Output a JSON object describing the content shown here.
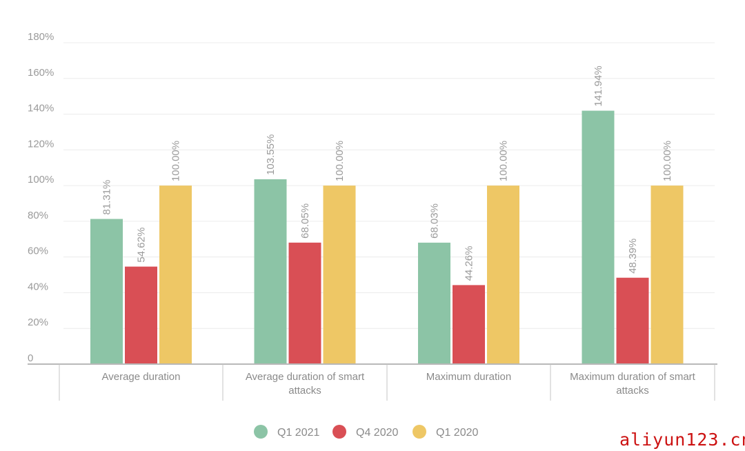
{
  "chart_data": {
    "type": "bar",
    "categories": [
      [
        "Average duration"
      ],
      [
        "Average duration of smart",
        "attacks"
      ],
      [
        "Maximum duration"
      ],
      [
        "Maximum duration of smart",
        "attacks"
      ]
    ],
    "series": [
      {
        "name": "Q1 2021",
        "color": "#8cc4a6",
        "values": [
          81.31,
          103.55,
          68.03,
          141.94
        ],
        "labels": [
          "81.31%",
          "103.55%",
          "68.03%",
          "141.94%"
        ]
      },
      {
        "name": "Q4 2020",
        "color": "#d94f55",
        "values": [
          54.62,
          68.05,
          44.26,
          48.39
        ],
        "labels": [
          "54.62%",
          "68.05%",
          "44.26%",
          "48.39%"
        ]
      },
      {
        "name": "Q1 2020",
        "color": "#eec765",
        "values": [
          100.0,
          100.0,
          100.0,
          100.0
        ],
        "labels": [
          "100.00%",
          "100.00%",
          "100.00%",
          "100.00%"
        ]
      }
    ],
    "yticks": [
      0,
      20,
      40,
      60,
      80,
      100,
      120,
      140,
      160,
      180
    ],
    "ytick_labels": [
      "0",
      "20%",
      "40%",
      "60%",
      "80%",
      "100%",
      "120%",
      "140%",
      "160%",
      "180%"
    ],
    "ylim": [
      0,
      180
    ],
    "grid": true,
    "legend_position": "bottom-center"
  },
  "watermark": "aliyun123.cn"
}
